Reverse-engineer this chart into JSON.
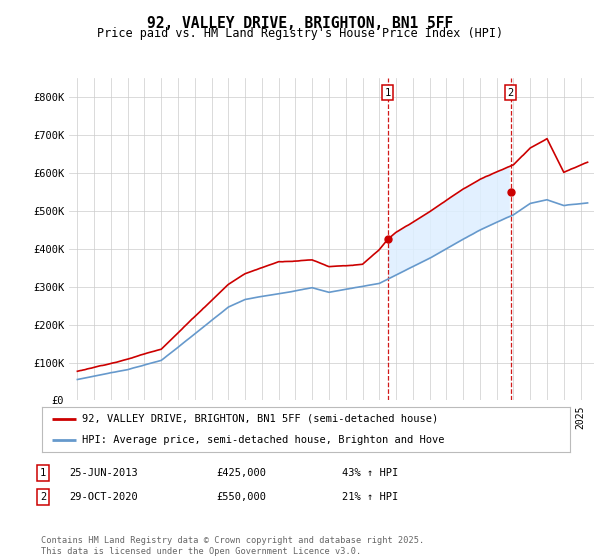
{
  "title_line1": "92, VALLEY DRIVE, BRIGHTON, BN1 5FF",
  "title_line2": "Price paid vs. HM Land Registry's House Price Index (HPI)",
  "ylim": [
    0,
    850000
  ],
  "yticks": [
    0,
    100000,
    200000,
    300000,
    400000,
    500000,
    600000,
    700000,
    800000
  ],
  "ytick_labels": [
    "£0",
    "£100K",
    "£200K",
    "£300K",
    "£400K",
    "£500K",
    "£600K",
    "£700K",
    "£800K"
  ],
  "legend_entries": [
    "92, VALLEY DRIVE, BRIGHTON, BN1 5FF (semi-detached house)",
    "HPI: Average price, semi-detached house, Brighton and Hove"
  ],
  "annotation1": {
    "num": "1",
    "date": "25-JUN-2013",
    "price": "£425,000",
    "pct": "43% ↑ HPI"
  },
  "annotation2": {
    "num": "2",
    "date": "29-OCT-2020",
    "price": "£550,000",
    "pct": "21% ↑ HPI"
  },
  "footer": "Contains HM Land Registry data © Crown copyright and database right 2025.\nThis data is licensed under the Open Government Licence v3.0.",
  "red_color": "#cc0000",
  "blue_color": "#6699cc",
  "fill_color": "#ddeeff",
  "vline_color": "#cc0000",
  "bg_color": "#ffffff",
  "grid_color": "#cccccc",
  "point1_x": 2013.5,
  "point1_y": 425000,
  "point2_x": 2020.83,
  "point2_y": 550000,
  "vline1_x": 2013.5,
  "vline2_x": 2020.83,
  "xlim_left": 1994.5,
  "xlim_right": 2025.8
}
